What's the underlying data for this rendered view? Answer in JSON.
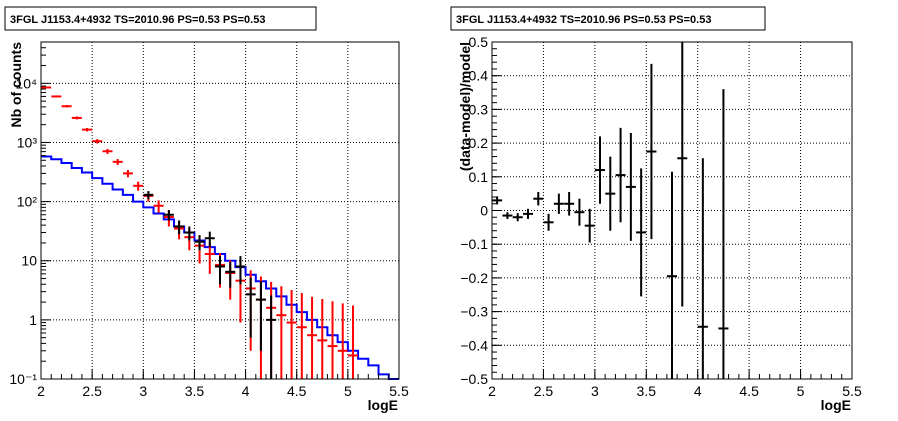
{
  "chart_data": [
    {
      "type": "histogram",
      "title": "3FGL J1153.4+4932 TS=2010.96 PS=0.53 PS=0.53",
      "xlabel": "logE",
      "ylabel": "Nb of counts",
      "xlim": [
        2,
        5.5
      ],
      "ylim": [
        0.1,
        50000
      ],
      "yscale": "log",
      "grid": true,
      "x_ticks": [
        "2",
        "2.5",
        "3",
        "3.5",
        "4",
        "4.5",
        "5",
        "5.5"
      ],
      "y_ticks": [
        "10⁻¹",
        "1",
        "10",
        "10²",
        "10³",
        "10⁴"
      ],
      "series": [
        {
          "style": "step",
          "color": "#0000ff",
          "bin_edges": [
            2.0,
            2.1,
            2.2,
            2.3,
            2.4,
            2.5,
            2.6,
            2.7,
            2.8,
            2.9,
            3.0,
            3.1,
            3.2,
            3.3,
            3.4,
            3.5,
            3.6,
            3.7,
            3.8,
            3.9,
            4.0,
            4.1,
            4.2,
            4.3,
            4.4,
            4.5,
            4.6,
            4.7,
            4.8,
            4.9,
            5.0,
            5.1,
            5.2,
            5.3,
            5.4,
            5.5
          ],
          "values": [
            580,
            520,
            450,
            370,
            310,
            250,
            200,
            160,
            130,
            100,
            80,
            63,
            50,
            38,
            30,
            22,
            17,
            13,
            10,
            7.8,
            5.8,
            4.5,
            3.4,
            2.5,
            1.8,
            1.35,
            1.0,
            0.75,
            0.55,
            0.42,
            0.3,
            0.22,
            0.17,
            0.12,
            0.1
          ]
        },
        {
          "style": "errorbar",
          "color": "#ff0000",
          "x": [
            2.05,
            2.15,
            2.25,
            2.35,
            2.45,
            2.55,
            2.65,
            2.75,
            2.85,
            2.95,
            3.05,
            3.15,
            3.25,
            3.35,
            3.45,
            3.55,
            3.65,
            3.75,
            3.85,
            3.95,
            4.05,
            4.15,
            4.25,
            4.35,
            4.45,
            4.55,
            4.65,
            4.75,
            4.85,
            4.95,
            5.05
          ],
          "y": [
            8500,
            6000,
            4100,
            2600,
            1650,
            1050,
            710,
            470,
            300,
            185,
            125,
            85,
            55,
            35,
            25,
            18,
            13,
            8.5,
            6.2,
            4.6,
            3.4,
            2.2,
            1.6,
            1.2,
            0.9,
            0.75,
            0.55,
            0.45,
            0.36,
            0.3,
            0.25
          ],
          "yerr_low": [
            300,
            250,
            200,
            150,
            110,
            90,
            70,
            55,
            42,
            32,
            25,
            20,
            17,
            12,
            10,
            9,
            7,
            5,
            4,
            3.7,
            3.1,
            2.1,
            1.55,
            1.15,
            0.86,
            0.72,
            0.53,
            0.43,
            0.35,
            0.29,
            0.24
          ],
          "yerr_high": [
            300,
            250,
            200,
            150,
            110,
            90,
            70,
            55,
            42,
            32,
            25,
            20,
            17,
            12,
            10,
            9,
            7,
            5,
            4,
            4,
            3.5,
            3.2,
            2.8,
            2.5,
            2.3,
            2.1,
            1.9,
            1.8,
            1.7,
            1.6,
            1.5
          ]
        },
        {
          "style": "errorbar",
          "color": "#000000",
          "x": [
            3.05,
            3.25,
            3.35,
            3.45,
            3.55,
            3.65,
            3.75,
            3.85,
            3.95,
            4.05,
            4.15,
            4.25
          ],
          "y": [
            130,
            60,
            38,
            30,
            21,
            24,
            8,
            6.5,
            8,
            2.7,
            2.2,
            1.0
          ],
          "yerr_low": [
            20,
            12,
            10,
            8,
            6,
            7,
            4,
            3,
            4,
            2.2,
            1.9,
            0.95
          ],
          "yerr_high": [
            20,
            12,
            10,
            8,
            6,
            7,
            4,
            3,
            4,
            2.5,
            2.3,
            1.6
          ]
        }
      ]
    },
    {
      "type": "errorbar",
      "title": "3FGL J1153.4+4932 TS=2010.96 PS=0.53 PS=0.53",
      "xlabel": "logE",
      "ylabel": "(data-model)/model",
      "xlim": [
        2,
        5.5
      ],
      "ylim": [
        -0.5,
        0.5
      ],
      "grid": true,
      "x_ticks": [
        "2",
        "2.5",
        "3",
        "3.5",
        "4",
        "4.5",
        "5",
        "5.5"
      ],
      "y_ticks": [
        "−0.5",
        "−0.4",
        "−0.3",
        "−0.2",
        "−0.1",
        "0",
        "0.1",
        "0.2",
        "0.3",
        "0.4",
        "0.5"
      ],
      "series": [
        {
          "color": "#000000",
          "x": [
            2.05,
            2.15,
            2.25,
            2.35,
            2.45,
            2.55,
            2.65,
            2.75,
            2.85,
            2.95,
            3.05,
            3.15,
            3.25,
            3.35,
            3.45,
            3.55,
            3.75,
            3.85,
            4.05,
            4.25
          ],
          "y": [
            0.03,
            -0.015,
            -0.02,
            -0.01,
            0.035,
            -0.035,
            0.02,
            0.02,
            -0.005,
            -0.045,
            0.12,
            0.05,
            0.105,
            0.07,
            -0.065,
            0.175,
            -0.195,
            0.155,
            -0.345,
            -0.35
          ],
          "yerr": [
            0.012,
            0.01,
            0.012,
            0.015,
            0.02,
            0.025,
            0.03,
            0.035,
            0.04,
            0.05,
            0.1,
            0.11,
            0.14,
            0.16,
            0.19,
            0.26,
            0.31,
            0.44,
            0.5,
            0.71
          ]
        }
      ]
    }
  ]
}
